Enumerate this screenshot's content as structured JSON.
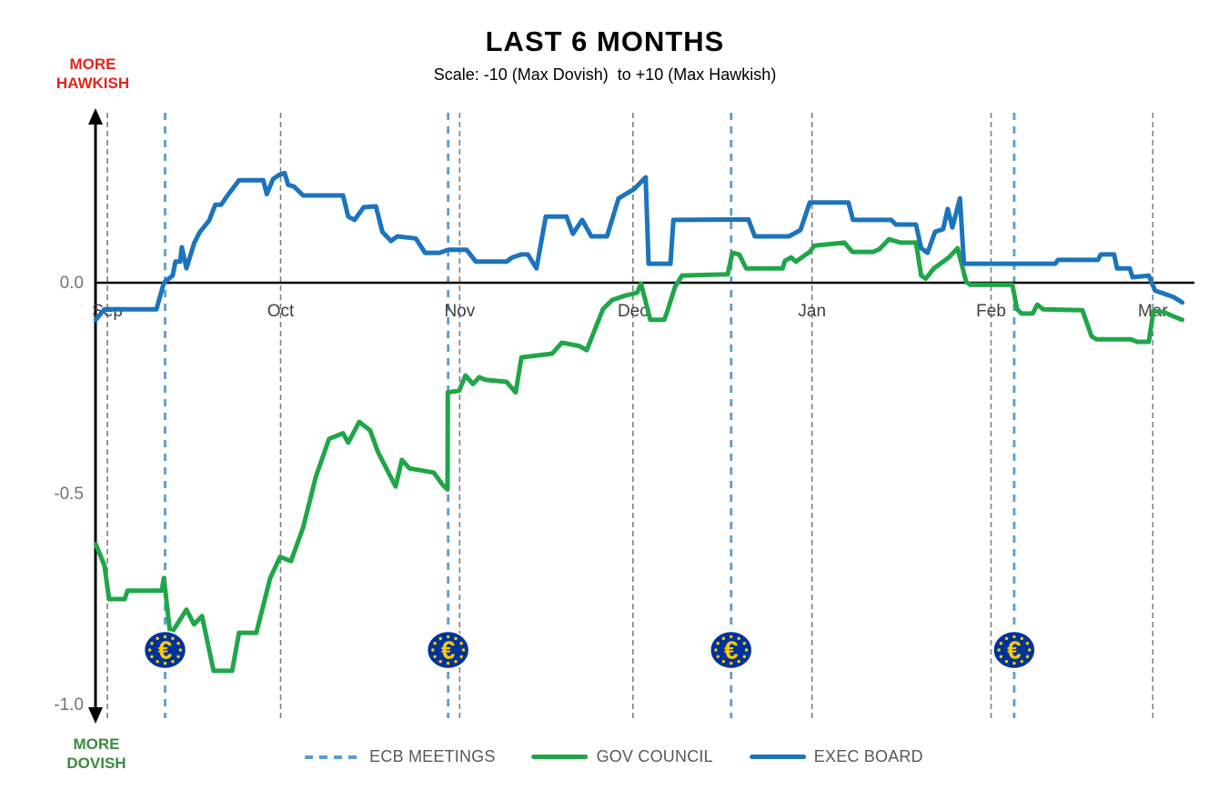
{
  "page": {
    "title": "LAST 6 MONTHS",
    "subtitle": "Scale: -10 (Max Dovish)  to +10 (Max Hawkish)"
  },
  "direction_labels": {
    "hawkish_line1": "MORE",
    "hawkish_line2": "HAWKISH",
    "dovish_line1": "MORE",
    "dovish_line2": "DOVISH"
  },
  "legend": {
    "items": [
      {
        "label": "ECB MEETINGS",
        "type": "dashed",
        "color": "#5b9bd5"
      },
      {
        "label": "GOV COUNCIL",
        "type": "solid",
        "color": "#1fa648"
      },
      {
        "label": "EXEC BOARD",
        "type": "solid",
        "color": "#1b74bc"
      }
    ]
  },
  "colors": {
    "gov_council": "#1fa648",
    "exec_board": "#1b74bc",
    "ecb_meeting_line": "#5b9bd5",
    "month_gridline": "#7f7f7f",
    "zero_line": "#000000",
    "tick_label": "#737373",
    "month_label": "#404040",
    "hawkish_red": "#e2251c",
    "dovish_green": "#3c8a3f",
    "euro_coin_blue": "#003399",
    "euro_coin_gold": "#ffcc00"
  },
  "chart_data": {
    "type": "line",
    "title": "LAST 6 MONTHS",
    "subtitle": "Scale: -10 (Max Dovish) to +10 (Max Hawkish)",
    "grid": "vertical-month-dashed",
    "legend_position": "bottom-center",
    "x_axis": {
      "unit": "days from Sep 1",
      "range": [
        -2,
        188
      ],
      "months": [
        {
          "label": "Sep",
          "day": 0
        },
        {
          "label": "Oct",
          "day": 30
        },
        {
          "label": "Nov",
          "day": 61
        },
        {
          "label": "Dec",
          "day": 91
        },
        {
          "label": "Jan",
          "day": 122
        },
        {
          "label": "Feb",
          "day": 153
        },
        {
          "label": "Mar",
          "day": 181
        }
      ]
    },
    "y_axis": {
      "range": [
        -1.03,
        0.4
      ],
      "ticks": [
        {
          "label": "0.0",
          "value": 0.0
        },
        {
          "label": "-0.5",
          "value": -0.5
        },
        {
          "label": "-1.0",
          "value": -1.0
        }
      ],
      "top_annotation": "MORE HAWKISH",
      "bottom_annotation": "MORE DOVISH"
    },
    "ecb_meetings": {
      "name": "ECB MEETINGS",
      "days": [
        10,
        59,
        108,
        157
      ]
    },
    "series": [
      {
        "name": "GOV COUNCIL",
        "color": "#1fa648",
        "points": [
          [
            -2,
            -0.62
          ],
          [
            -0.5,
            -0.67
          ],
          [
            0.3,
            -0.75
          ],
          [
            3,
            -0.75
          ],
          [
            3.5,
            -0.73
          ],
          [
            9.4,
            -0.73
          ],
          [
            9.8,
            -0.7
          ],
          [
            10.9,
            -0.835
          ],
          [
            13.7,
            -0.775
          ],
          [
            15,
            -0.81
          ],
          [
            16.4,
            -0.79
          ],
          [
            18.4,
            -0.92
          ],
          [
            21.6,
            -0.92
          ],
          [
            22.8,
            -0.83
          ],
          [
            25.8,
            -0.83
          ],
          [
            28.2,
            -0.7
          ],
          [
            29.9,
            -0.65
          ],
          [
            31.8,
            -0.66
          ],
          [
            33.9,
            -0.58
          ],
          [
            36.1,
            -0.46
          ],
          [
            38.4,
            -0.37
          ],
          [
            40.8,
            -0.357
          ],
          [
            41.7,
            -0.379
          ],
          [
            43.6,
            -0.33
          ],
          [
            45.5,
            -0.35
          ],
          [
            46.8,
            -0.4
          ],
          [
            49.9,
            -0.483
          ],
          [
            51,
            -0.42
          ],
          [
            52.3,
            -0.44
          ],
          [
            56.5,
            -0.45
          ],
          [
            58.1,
            -0.48
          ],
          [
            58.9,
            -0.49
          ],
          [
            58.95,
            -0.26
          ],
          [
            60.9,
            -0.256
          ],
          [
            62,
            -0.22
          ],
          [
            63.3,
            -0.24
          ],
          [
            64.4,
            -0.224
          ],
          [
            65.4,
            -0.23
          ],
          [
            69.1,
            -0.235
          ],
          [
            70.7,
            -0.26
          ],
          [
            71.7,
            -0.177
          ],
          [
            77,
            -0.168
          ],
          [
            78.7,
            -0.142
          ],
          [
            81.7,
            -0.15
          ],
          [
            83,
            -0.16
          ],
          [
            85.8,
            -0.063
          ],
          [
            87.4,
            -0.041
          ],
          [
            89.8,
            -0.03
          ],
          [
            91.7,
            -0.024
          ],
          [
            92.4,
            -0.002
          ],
          [
            94,
            -0.088
          ],
          [
            96.4,
            -0.088
          ],
          [
            96.9,
            -0.07
          ],
          [
            98.3,
            -0.009
          ],
          [
            99.5,
            0.017
          ],
          [
            107.4,
            0.02
          ],
          [
            108.2,
            0.071
          ],
          [
            109.4,
            0.067
          ],
          [
            110.6,
            0.034
          ],
          [
            116.9,
            0.034
          ],
          [
            117.3,
            0.052
          ],
          [
            118.4,
            0.06
          ],
          [
            119.2,
            0.05
          ],
          [
            121.6,
            0.073
          ],
          [
            122.4,
            0.088
          ],
          [
            127.6,
            0.095
          ],
          [
            129,
            0.073
          ],
          [
            132.6,
            0.073
          ],
          [
            133.7,
            0.08
          ],
          [
            135.3,
            0.103
          ],
          [
            137.3,
            0.095
          ],
          [
            140,
            0.095
          ],
          [
            140.9,
            0.017
          ],
          [
            141.7,
            0.01
          ],
          [
            143.1,
            0.034
          ],
          [
            145.7,
            0.06
          ],
          [
            147.2,
            0.082
          ],
          [
            148.7,
            0.002
          ],
          [
            149.4,
            -0.005
          ],
          [
            156.7,
            -0.005
          ],
          [
            157.5,
            -0.063
          ],
          [
            158.3,
            -0.073
          ],
          [
            160.2,
            -0.073
          ],
          [
            161,
            -0.052
          ],
          [
            162,
            -0.063
          ],
          [
            168.8,
            -0.065
          ],
          [
            170.4,
            -0.127
          ],
          [
            171.2,
            -0.134
          ],
          [
            177.2,
            -0.134
          ],
          [
            178.3,
            -0.14
          ],
          [
            180.3,
            -0.14
          ],
          [
            181.1,
            -0.067
          ],
          [
            183,
            -0.07
          ],
          [
            184.6,
            -0.08
          ],
          [
            186.1,
            -0.088
          ]
        ]
      },
      {
        "name": "EXEC BOARD",
        "color": "#1b74bc",
        "points": [
          [
            -2,
            -0.088
          ],
          [
            -0.5,
            -0.063
          ],
          [
            8.5,
            -0.063
          ],
          [
            9.8,
            0.0
          ],
          [
            11.3,
            0.017
          ],
          [
            11.8,
            0.05
          ],
          [
            12.6,
            0.05
          ],
          [
            12.9,
            0.084
          ],
          [
            13.7,
            0.034
          ],
          [
            15,
            0.093
          ],
          [
            16,
            0.12
          ],
          [
            17.6,
            0.147
          ],
          [
            18.7,
            0.185
          ],
          [
            19.7,
            0.185
          ],
          [
            20.8,
            0.207
          ],
          [
            22.8,
            0.243
          ],
          [
            27,
            0.243
          ],
          [
            27.6,
            0.21
          ],
          [
            28.7,
            0.246
          ],
          [
            29.8,
            0.256
          ],
          [
            30.7,
            0.26
          ],
          [
            31.3,
            0.232
          ],
          [
            32.3,
            0.228
          ],
          [
            33.9,
            0.207
          ],
          [
            40.8,
            0.207
          ],
          [
            41.7,
            0.157
          ],
          [
            42.8,
            0.149
          ],
          [
            44.4,
            0.179
          ],
          [
            46.5,
            0.181
          ],
          [
            47.6,
            0.121
          ],
          [
            49.1,
            0.099
          ],
          [
            50.2,
            0.11
          ],
          [
            53.4,
            0.105
          ],
          [
            55,
            0.071
          ],
          [
            57.5,
            0.071
          ],
          [
            59,
            0.078
          ],
          [
            62.2,
            0.078
          ],
          [
            63.8,
            0.05
          ],
          [
            69.1,
            0.05
          ],
          [
            70.1,
            0.06
          ],
          [
            71.7,
            0.067
          ],
          [
            72.8,
            0.067
          ],
          [
            74.3,
            0.034
          ],
          [
            75.9,
            0.157
          ],
          [
            79.5,
            0.157
          ],
          [
            80.6,
            0.116
          ],
          [
            82.2,
            0.149
          ],
          [
            83.8,
            0.11
          ],
          [
            86.5,
            0.11
          ],
          [
            88.5,
            0.2
          ],
          [
            91.2,
            0.222
          ],
          [
            93.2,
            0.25
          ],
          [
            93.7,
            0.045
          ],
          [
            97.5,
            0.045
          ],
          [
            98,
            0.149
          ],
          [
            111,
            0.15
          ],
          [
            112.1,
            0.11
          ],
          [
            118,
            0.11
          ],
          [
            120,
            0.125
          ],
          [
            121.6,
            0.19
          ],
          [
            128.3,
            0.19
          ],
          [
            129.1,
            0.149
          ],
          [
            135.7,
            0.149
          ],
          [
            136.5,
            0.138
          ],
          [
            140,
            0.138
          ],
          [
            140.9,
            0.082
          ],
          [
            142,
            0.071
          ],
          [
            143.3,
            0.121
          ],
          [
            144.7,
            0.127
          ],
          [
            145.5,
            0.175
          ],
          [
            146.3,
            0.131
          ],
          [
            147.6,
            0.2
          ],
          [
            148.3,
            0.045
          ],
          [
            164.1,
            0.045
          ],
          [
            164.6,
            0.054
          ],
          [
            171.5,
            0.054
          ],
          [
            172,
            0.067
          ],
          [
            174.3,
            0.067
          ],
          [
            174.8,
            0.034
          ],
          [
            177,
            0.034
          ],
          [
            177.5,
            0.013
          ],
          [
            180.3,
            0.017
          ],
          [
            181.4,
            -0.019
          ],
          [
            183,
            -0.026
          ],
          [
            184.6,
            -0.034
          ],
          [
            186.1,
            -0.047
          ]
        ]
      }
    ]
  }
}
